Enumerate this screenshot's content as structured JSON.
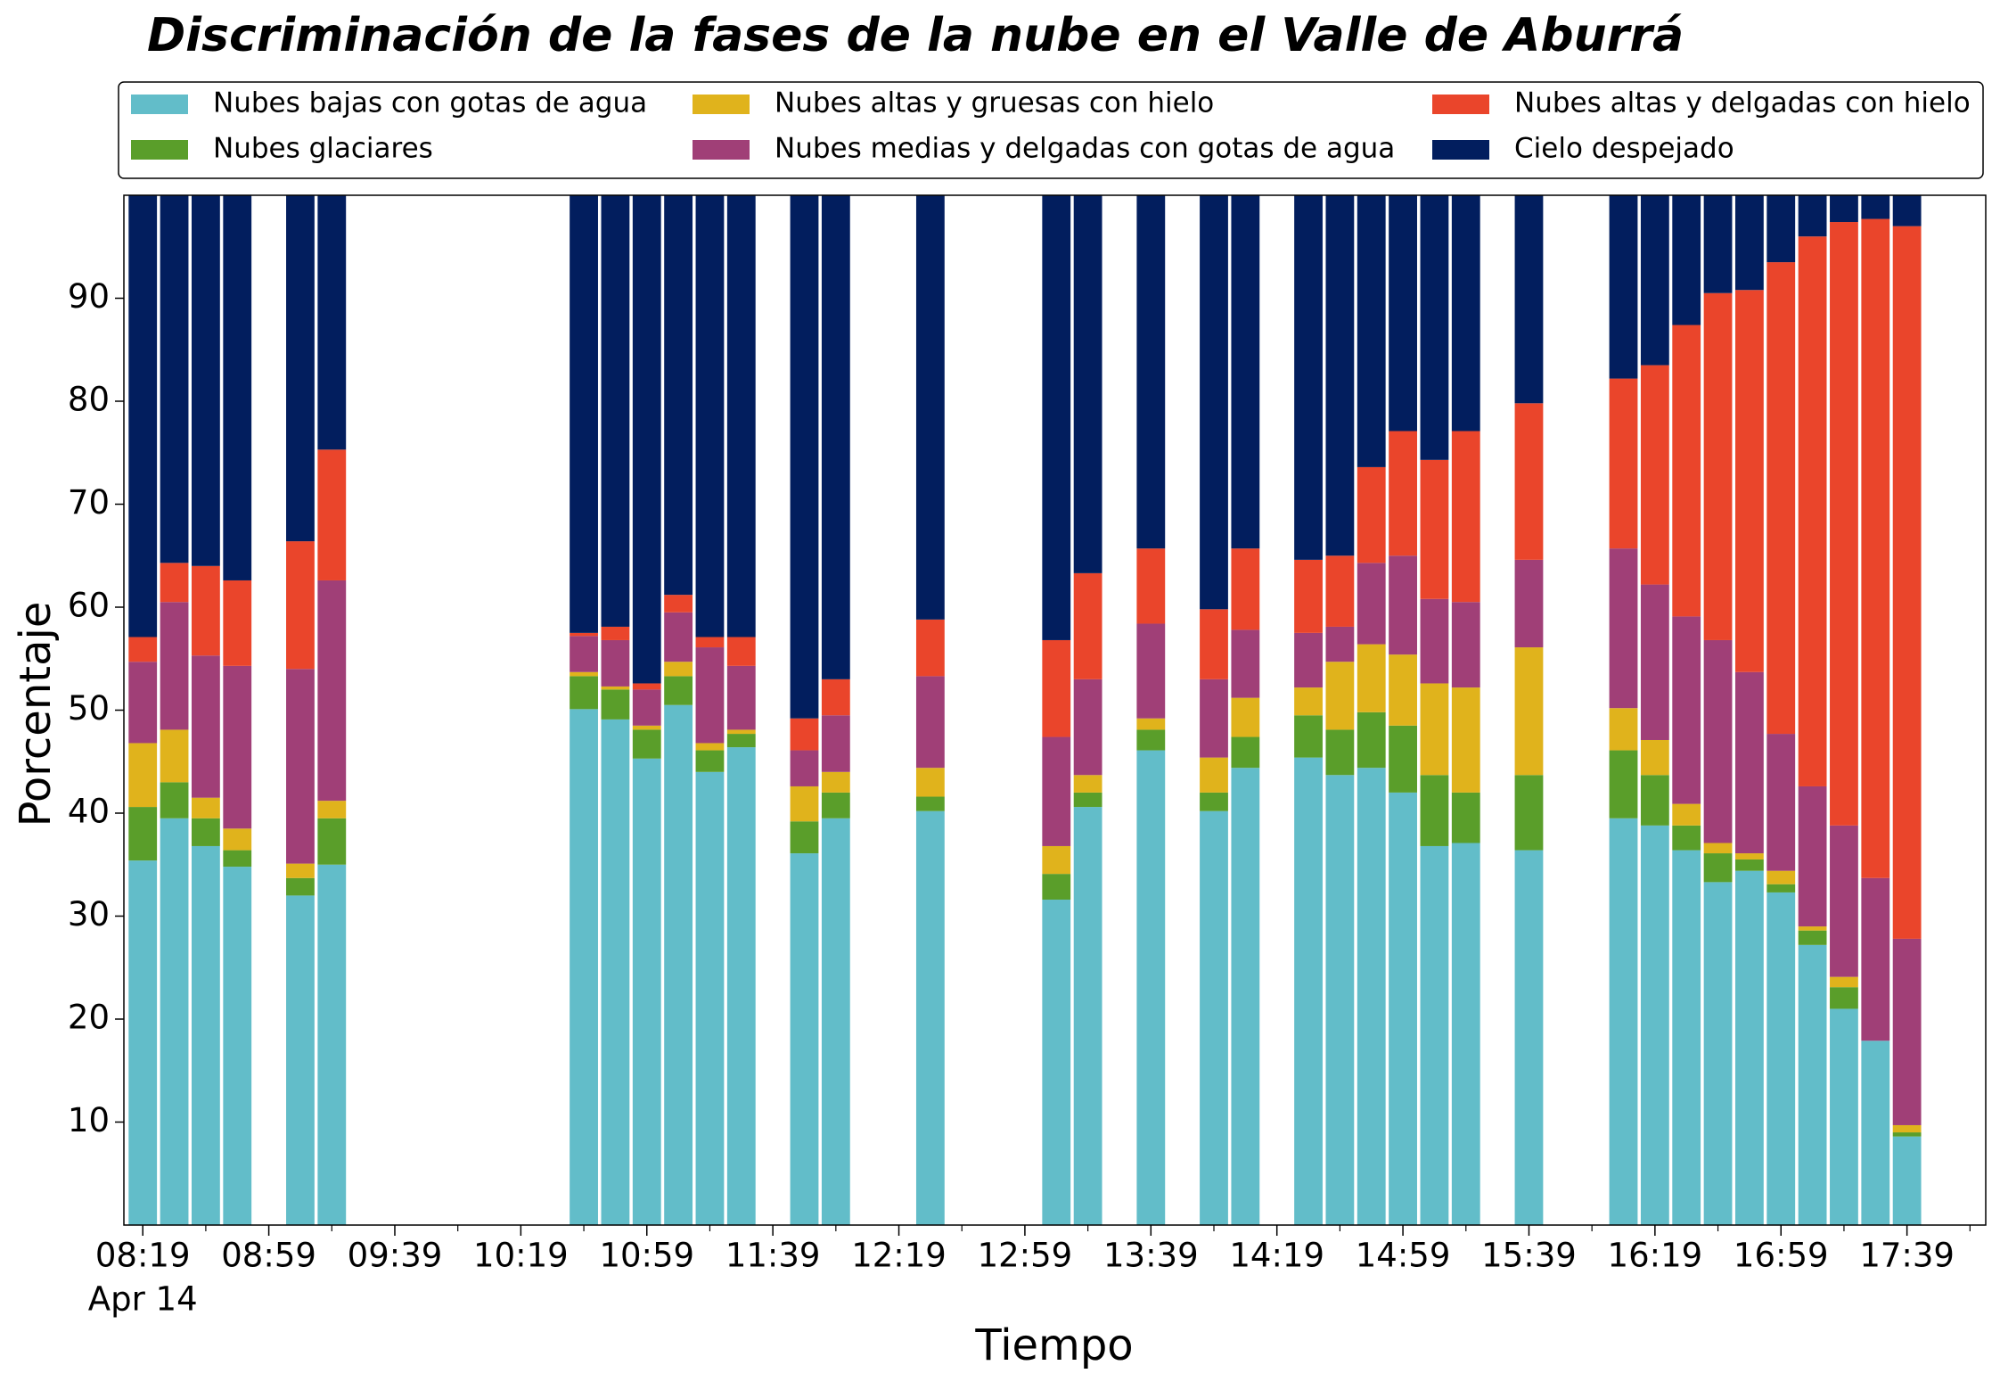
{
  "chart_data": {
    "type": "stacked_bar",
    "title": "Discriminación de la fases de la nube en el Valle de Aburrá",
    "x_label": "Tiempo",
    "y_label": "Porcentaje",
    "x_date_label": "Apr 14",
    "x": [
      "08:19",
      "08:29",
      "08:39",
      "08:49",
      "09:09",
      "09:19",
      "10:39",
      "10:49",
      "10:59",
      "11:09",
      "11:19",
      "11:29",
      "11:49",
      "11:59",
      "12:29",
      "13:09",
      "13:19",
      "13:39",
      "13:59",
      "14:09",
      "14:29",
      "14:39",
      "14:49",
      "14:59",
      "15:09",
      "15:19",
      "15:39",
      "16:09",
      "16:19",
      "16:29",
      "16:39",
      "16:49",
      "16:59",
      "17:09",
      "17:19",
      "17:29",
      "17:39"
    ],
    "xlim": [
      "08:13",
      "18:04"
    ],
    "xticks": [
      "08:19",
      "08:59",
      "09:39",
      "10:19",
      "10:59",
      "11:39",
      "12:19",
      "12:59",
      "13:39",
      "14:19",
      "14:59",
      "15:39",
      "16:19",
      "16:59",
      "17:39"
    ],
    "xticks_minor": [
      "08:39",
      "09:19",
      "09:59",
      "10:39",
      "11:19",
      "11:59",
      "12:39",
      "13:19",
      "13:59",
      "14:39",
      "15:19",
      "15:59",
      "16:39",
      "17:19",
      "17:59"
    ],
    "ylim": [
      0,
      100
    ],
    "yticks": [
      10,
      20,
      30,
      40,
      50,
      60,
      70,
      80,
      90
    ],
    "grid": false,
    "legend": "top",
    "series": [
      {
        "name": "Nubes bajas con gotas de agua",
        "color": "#62bdc9",
        "values": [
          35.4,
          39.5,
          36.8,
          34.8,
          32,
          35,
          50.1,
          49.1,
          45.3,
          50.5,
          44,
          46.4,
          36.1,
          39.5,
          40.2,
          31.6,
          40.6,
          46.1,
          40.2,
          44.4,
          45.4,
          43.7,
          44.4,
          42,
          36.8,
          37.1,
          36.4,
          39.5,
          38.8,
          36.4,
          33.3,
          34.4,
          32.3,
          27.2,
          21,
          17.9,
          8.6
        ]
      },
      {
        "name": "Nubes glaciares",
        "color": "#5a9e2a",
        "values": [
          5.2,
          3.5,
          2.7,
          1.6,
          1.7,
          4.5,
          3.2,
          2.9,
          2.8,
          2.8,
          2.1,
          1.3,
          3.1,
          2.5,
          1.4,
          2.5,
          1.4,
          2,
          1.8,
          3,
          4.1,
          4.4,
          5.4,
          6.5,
          6.9,
          4.9,
          7.3,
          6.6,
          4.9,
          2.4,
          2.8,
          1.1,
          0.8,
          1.4,
          2.1,
          0,
          0.4
        ]
      },
      {
        "name": "Nubes altas y gruesas con hielo",
        "color": "#e0b31c",
        "values": [
          6.2,
          5.1,
          2,
          2.1,
          1.4,
          1.7,
          0.4,
          0.3,
          0.4,
          1.4,
          0.7,
          0.4,
          3.4,
          2,
          2.8,
          2.7,
          1.7,
          1.1,
          3.4,
          3.8,
          2.7,
          6.6,
          6.6,
          6.9,
          8.9,
          10.2,
          12.4,
          4.1,
          3.4,
          2.1,
          1,
          0.6,
          1.3,
          0.4,
          1,
          0,
          0.7
        ]
      },
      {
        "name": "Nubes medias y delgadas con gotas de agua",
        "color": "#a03f77",
        "values": [
          7.9,
          12.4,
          13.8,
          15.8,
          18.9,
          21.4,
          3.5,
          4.5,
          3.5,
          4.8,
          9.3,
          6.2,
          3.5,
          5.5,
          8.9,
          10.6,
          9.3,
          9.2,
          7.6,
          6.6,
          5.3,
          3.4,
          7.9,
          9.6,
          8.2,
          8.3,
          8.5,
          15.5,
          15.1,
          18.2,
          19.7,
          17.6,
          13.3,
          13.6,
          14.7,
          15.8,
          18.1
        ]
      },
      {
        "name": "Nubes altas y delgadas con hielo",
        "color": "#ea452b",
        "values": [
          2.4,
          3.8,
          8.7,
          8.3,
          12.4,
          12.7,
          0.3,
          1.3,
          0.6,
          1.7,
          1,
          2.8,
          3.1,
          3.5,
          5.5,
          9.4,
          10.3,
          7.3,
          6.8,
          7.9,
          7.1,
          6.9,
          9.3,
          12.1,
          13.5,
          16.6,
          15.2,
          16.5,
          21.3,
          28.3,
          33.7,
          37.1,
          45.8,
          53.4,
          58.6,
          64,
          69.2
        ]
      },
      {
        "name": "Cielo despejado",
        "color": "#021e5e",
        "values": [
          42.9,
          35.7,
          36,
          37.4,
          33.6,
          24.7,
          42.5,
          41.9,
          47.4,
          38.8,
          42.9,
          42.9,
          50.8,
          47,
          41.2,
          43.2,
          36.7,
          34.3,
          40.2,
          34.3,
          35.4,
          35,
          26.4,
          22.9,
          25.7,
          22.9,
          20.2,
          17.8,
          16.5,
          12.6,
          9.5,
          9.2,
          6.5,
          4,
          2.6,
          2.3,
          3
        ]
      }
    ]
  }
}
